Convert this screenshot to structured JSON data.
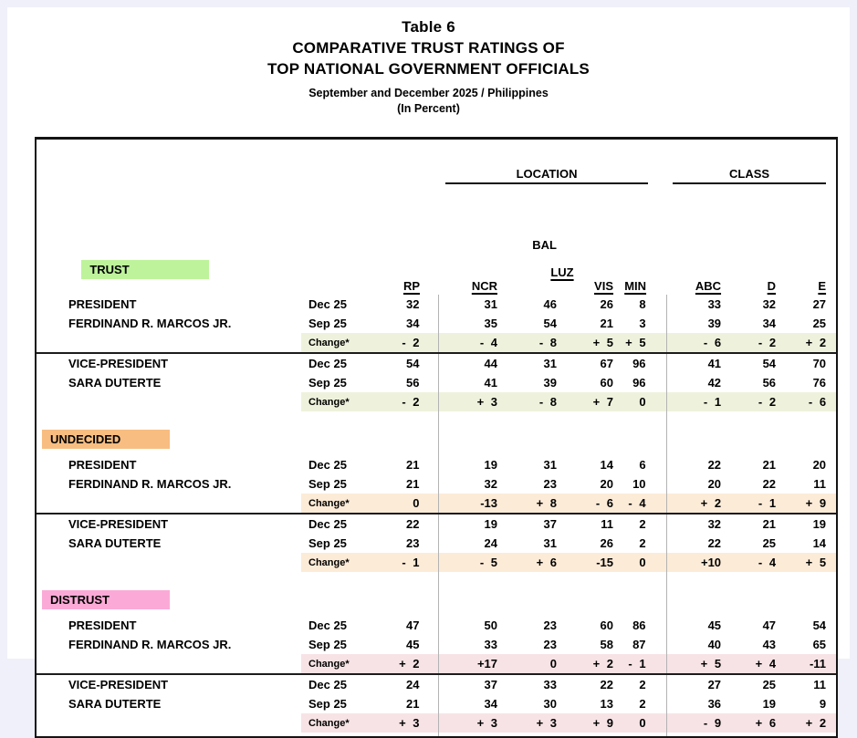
{
  "page": {
    "title_lines": [
      "Table 6",
      "COMPARATIVE TRUST RATINGS OF",
      "TOP NATIONAL GOVERNMENT OFFICIALS",
      "September and December 2025 / Philippines",
      "(In Percent)"
    ]
  },
  "table": {
    "group_headers": {
      "location": "LOCATION",
      "class": "CLASS"
    },
    "columns": [
      {
        "id": "rp",
        "label": "RP"
      },
      {
        "id": "ncr",
        "label": "NCR",
        "group": "location"
      },
      {
        "id": "luz",
        "top": "BAL",
        "label": "LUZ",
        "group": "location"
      },
      {
        "id": "vis",
        "label": "VIS",
        "group": "location"
      },
      {
        "id": "min",
        "label": "MIN",
        "group": "location"
      },
      {
        "id": "abc",
        "label": "ABC",
        "group": "class"
      },
      {
        "id": "d",
        "label": "D",
        "group": "class"
      },
      {
        "id": "e",
        "label": "E",
        "group": "class"
      }
    ],
    "change_label": "Change*",
    "sections": [
      {
        "label": "TRUST",
        "badge_color": "#bef39b",
        "change_row_color": "#eef2dc",
        "blocks": [
          {
            "office": "PRESIDENT",
            "name": "FERDINAND R. MARCOS JR.",
            "rows": [
              {
                "period": "Dec 25",
                "values": [
                  "32",
                  "31",
                  "46",
                  "26",
                  "8",
                  "33",
                  "32",
                  "27"
                ]
              },
              {
                "period": "Sep 25",
                "values": [
                  "34",
                  "35",
                  "54",
                  "21",
                  "3",
                  "39",
                  "34",
                  "25"
                ]
              }
            ],
            "change": [
              "- 2",
              "- 4",
              "- 8",
              "+ 5",
              "+ 5",
              "- 6",
              "- 2",
              "+ 2"
            ]
          },
          {
            "office": "VICE-PRESIDENT",
            "name": "SARA DUTERTE",
            "rows": [
              {
                "period": "Dec 25",
                "values": [
                  "54",
                  "44",
                  "31",
                  "67",
                  "96",
                  "41",
                  "54",
                  "70"
                ]
              },
              {
                "period": "Sep 25",
                "values": [
                  "56",
                  "41",
                  "39",
                  "60",
                  "96",
                  "42",
                  "56",
                  "76"
                ]
              }
            ],
            "change": [
              "- 2",
              "+ 3",
              "- 8",
              "+ 7",
              "0",
              "- 1",
              "- 2",
              "- 6"
            ]
          }
        ]
      },
      {
        "label": "UNDECIDED",
        "badge_color": "#f8bd80",
        "change_row_color": "#fcebd7",
        "blocks": [
          {
            "office": "PRESIDENT",
            "name": "FERDINAND R. MARCOS JR.",
            "rows": [
              {
                "period": "Dec 25",
                "values": [
                  "21",
                  "19",
                  "31",
                  "14",
                  "6",
                  "22",
                  "21",
                  "20"
                ]
              },
              {
                "period": "Sep 25",
                "values": [
                  "21",
                  "32",
                  "23",
                  "20",
                  "10",
                  "20",
                  "22",
                  "11"
                ]
              }
            ],
            "change": [
              "0",
              "-13",
              "+ 8",
              "- 6",
              "- 4",
              "+ 2",
              "- 1",
              "+ 9"
            ]
          },
          {
            "office": "VICE-PRESIDENT",
            "name": "SARA DUTERTE",
            "rows": [
              {
                "period": "Dec 25",
                "values": [
                  "22",
                  "19",
                  "37",
                  "11",
                  "2",
                  "32",
                  "21",
                  "19"
                ]
              },
              {
                "period": "Sep 25",
                "values": [
                  "23",
                  "24",
                  "31",
                  "26",
                  "2",
                  "22",
                  "25",
                  "14"
                ]
              }
            ],
            "change": [
              "- 1",
              "- 5",
              "+ 6",
              "-15",
              "0",
              "+10",
              "- 4",
              "+ 5"
            ]
          }
        ]
      },
      {
        "label": "DISTRUST",
        "badge_color": "#fbaad7",
        "change_row_color": "#f7e3e5",
        "blocks": [
          {
            "office": "PRESIDENT",
            "name": "FERDINAND R. MARCOS JR.",
            "rows": [
              {
                "period": "Dec 25",
                "values": [
                  "47",
                  "50",
                  "23",
                  "60",
                  "86",
                  "45",
                  "47",
                  "54"
                ]
              },
              {
                "period": "Sep 25",
                "values": [
                  "45",
                  "33",
                  "23",
                  "58",
                  "87",
                  "40",
                  "43",
                  "65"
                ]
              }
            ],
            "change": [
              "+ 2",
              "+17",
              "0",
              "+ 2",
              "- 1",
              "+ 5",
              "+ 4",
              "-11"
            ]
          },
          {
            "office": "VICE-PRESIDENT",
            "name": "SARA DUTERTE",
            "rows": [
              {
                "period": "Dec 25",
                "values": [
                  "24",
                  "37",
                  "33",
                  "22",
                  "2",
                  "27",
                  "25",
                  "11"
                ]
              },
              {
                "period": "Sep 25",
                "values": [
                  "21",
                  "34",
                  "30",
                  "13",
                  "2",
                  "36",
                  "19",
                  "9"
                ]
              }
            ],
            "change": [
              "+ 3",
              "+ 3",
              "+ 3",
              "+ 9",
              "0",
              "- 9",
              "+ 6",
              "+ 2"
            ]
          }
        ]
      }
    ]
  }
}
